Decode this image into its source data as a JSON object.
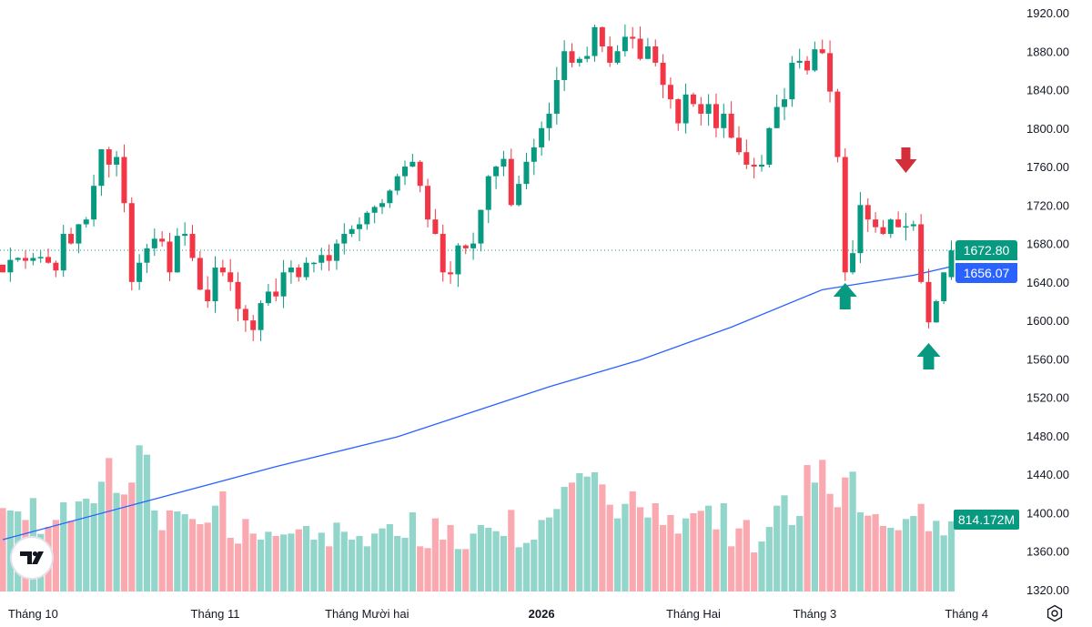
{
  "chart_data": {
    "type": "candlestick",
    "price_axis": {
      "ticks": [
        1920,
        1880,
        1840,
        1800,
        1760,
        1720,
        1680,
        1640,
        1600,
        1560,
        1520,
        1480,
        1440,
        1400,
        1360,
        1320
      ],
      "format_decimals": 2,
      "range": [
        1320,
        1920
      ]
    },
    "x_axis": {
      "labels": [
        {
          "text": "Tháng 10",
          "index": 4,
          "bold": false
        },
        {
          "text": "Tháng 11",
          "index": 28,
          "bold": false
        },
        {
          "text": "Tháng Mười hai",
          "index": 48,
          "bold": false
        },
        {
          "text": "2026",
          "index": 71,
          "bold": true
        },
        {
          "text": "Tháng Hai",
          "index": 91,
          "bold": false
        },
        {
          "text": "Tháng 3",
          "index": 107,
          "bold": false
        },
        {
          "text": "Tháng 4",
          "index": 127,
          "bold": false
        }
      ]
    },
    "close": [
      1650,
      1663,
      1665,
      1662,
      1665,
      1666,
      1660,
      1652,
      1690,
      1680,
      1700,
      1705,
      1740,
      1778,
      1762,
      1770,
      1722,
      1640,
      1660,
      1675,
      1685,
      1682,
      1650,
      1688,
      1690,
      1665,
      1632,
      1620,
      1655,
      1650,
      1640,
      1612,
      1600,
      1590,
      1618,
      1630,
      1625,
      1650,
      1655,
      1645,
      1660,
      1660,
      1668,
      1662,
      1680,
      1690,
      1695,
      1700,
      1712,
      1718,
      1722,
      1735,
      1750,
      1760,
      1765,
      1740,
      1705,
      1690,
      1650,
      1648,
      1678,
      1675,
      1680,
      1715,
      1750,
      1760,
      1768,
      1720,
      1742,
      1765,
      1780,
      1800,
      1815,
      1850,
      1880,
      1868,
      1872,
      1875,
      1905,
      1885,
      1868,
      1880,
      1895,
      1893,
      1872,
      1885,
      1868,
      1845,
      1830,
      1805,
      1835,
      1825,
      1815,
      1825,
      1800,
      1815,
      1790,
      1775,
      1762,
      1760,
      1762,
      1800,
      1822,
      1830,
      1868,
      1870,
      1860,
      1882,
      1878,
      1838,
      1770,
      1650,
      1670,
      1720,
      1705,
      1697,
      1690,
      1705,
      1697,
      1698,
      1700,
      1640,
      1598,
      1620,
      1650,
      1672.8
    ],
    "volume_millions": [
      969,
      941,
      930,
      831,
      1085,
      669,
      750,
      831,
      1036,
      821,
      1046,
      1078,
      1025,
      1275,
      1550,
      1145,
      1127,
      1265,
      1698,
      1589,
      941,
      712,
      941,
      930,
      898,
      842,
      782,
      800,
      997,
      1163,
      624,
      557,
      842,
      673,
      602,
      694,
      645,
      662,
      673,
      722,
      761,
      602,
      683,
      525,
      800,
      694,
      602,
      645,
      525,
      673,
      733,
      782,
      645,
      624,
      920,
      525,
      504,
      849,
      602,
      772,
      493,
      493,
      673,
      772,
      740,
      701,
      645,
      948,
      514,
      564,
      602,
      831,
      860,
      958,
      1215,
      1265,
      1374,
      1335,
      1385,
      1244,
      1008,
      849,
      1018,
      1163,
      979,
      860,
      1025,
      772,
      888,
      673,
      849,
      909,
      937,
      997,
      722,
      1025,
      525,
      733,
      831,
      454,
      581,
      750,
      997,
      1117,
      772,
      877,
      1469,
      1265,
      1529,
      1134,
      979,
      1325,
      1392,
      920,
      881,
      898,
      761,
      740,
      712,
      842,
      877,
      1018,
      701,
      821,
      652,
      814.172
    ],
    "moving_average": [
      [
        0,
        1372
      ],
      [
        18,
        1410
      ],
      [
        36,
        1448
      ],
      [
        52,
        1479
      ],
      [
        72,
        1531
      ],
      [
        84,
        1559
      ],
      [
        96,
        1593
      ],
      [
        108,
        1632
      ],
      [
        112,
        1637
      ],
      [
        120,
        1647
      ],
      [
        125,
        1656.07
      ]
    ],
    "last_price": "1672.80",
    "ma_value": "1656.07",
    "last_volume": "814.172M",
    "markers": [
      {
        "type": "arrow-down",
        "index": 119,
        "color": "#d32f3a"
      },
      {
        "type": "arrow-up",
        "index": 111,
        "color": "#089981"
      },
      {
        "type": "arrow-up",
        "index": 122,
        "color": "#089981"
      }
    ],
    "colors": {
      "up": "#089981",
      "down": "#f23645",
      "vol_up": "#92d5ca",
      "vol_down": "#faa9b0",
      "ma": "#2962ff"
    }
  }
}
